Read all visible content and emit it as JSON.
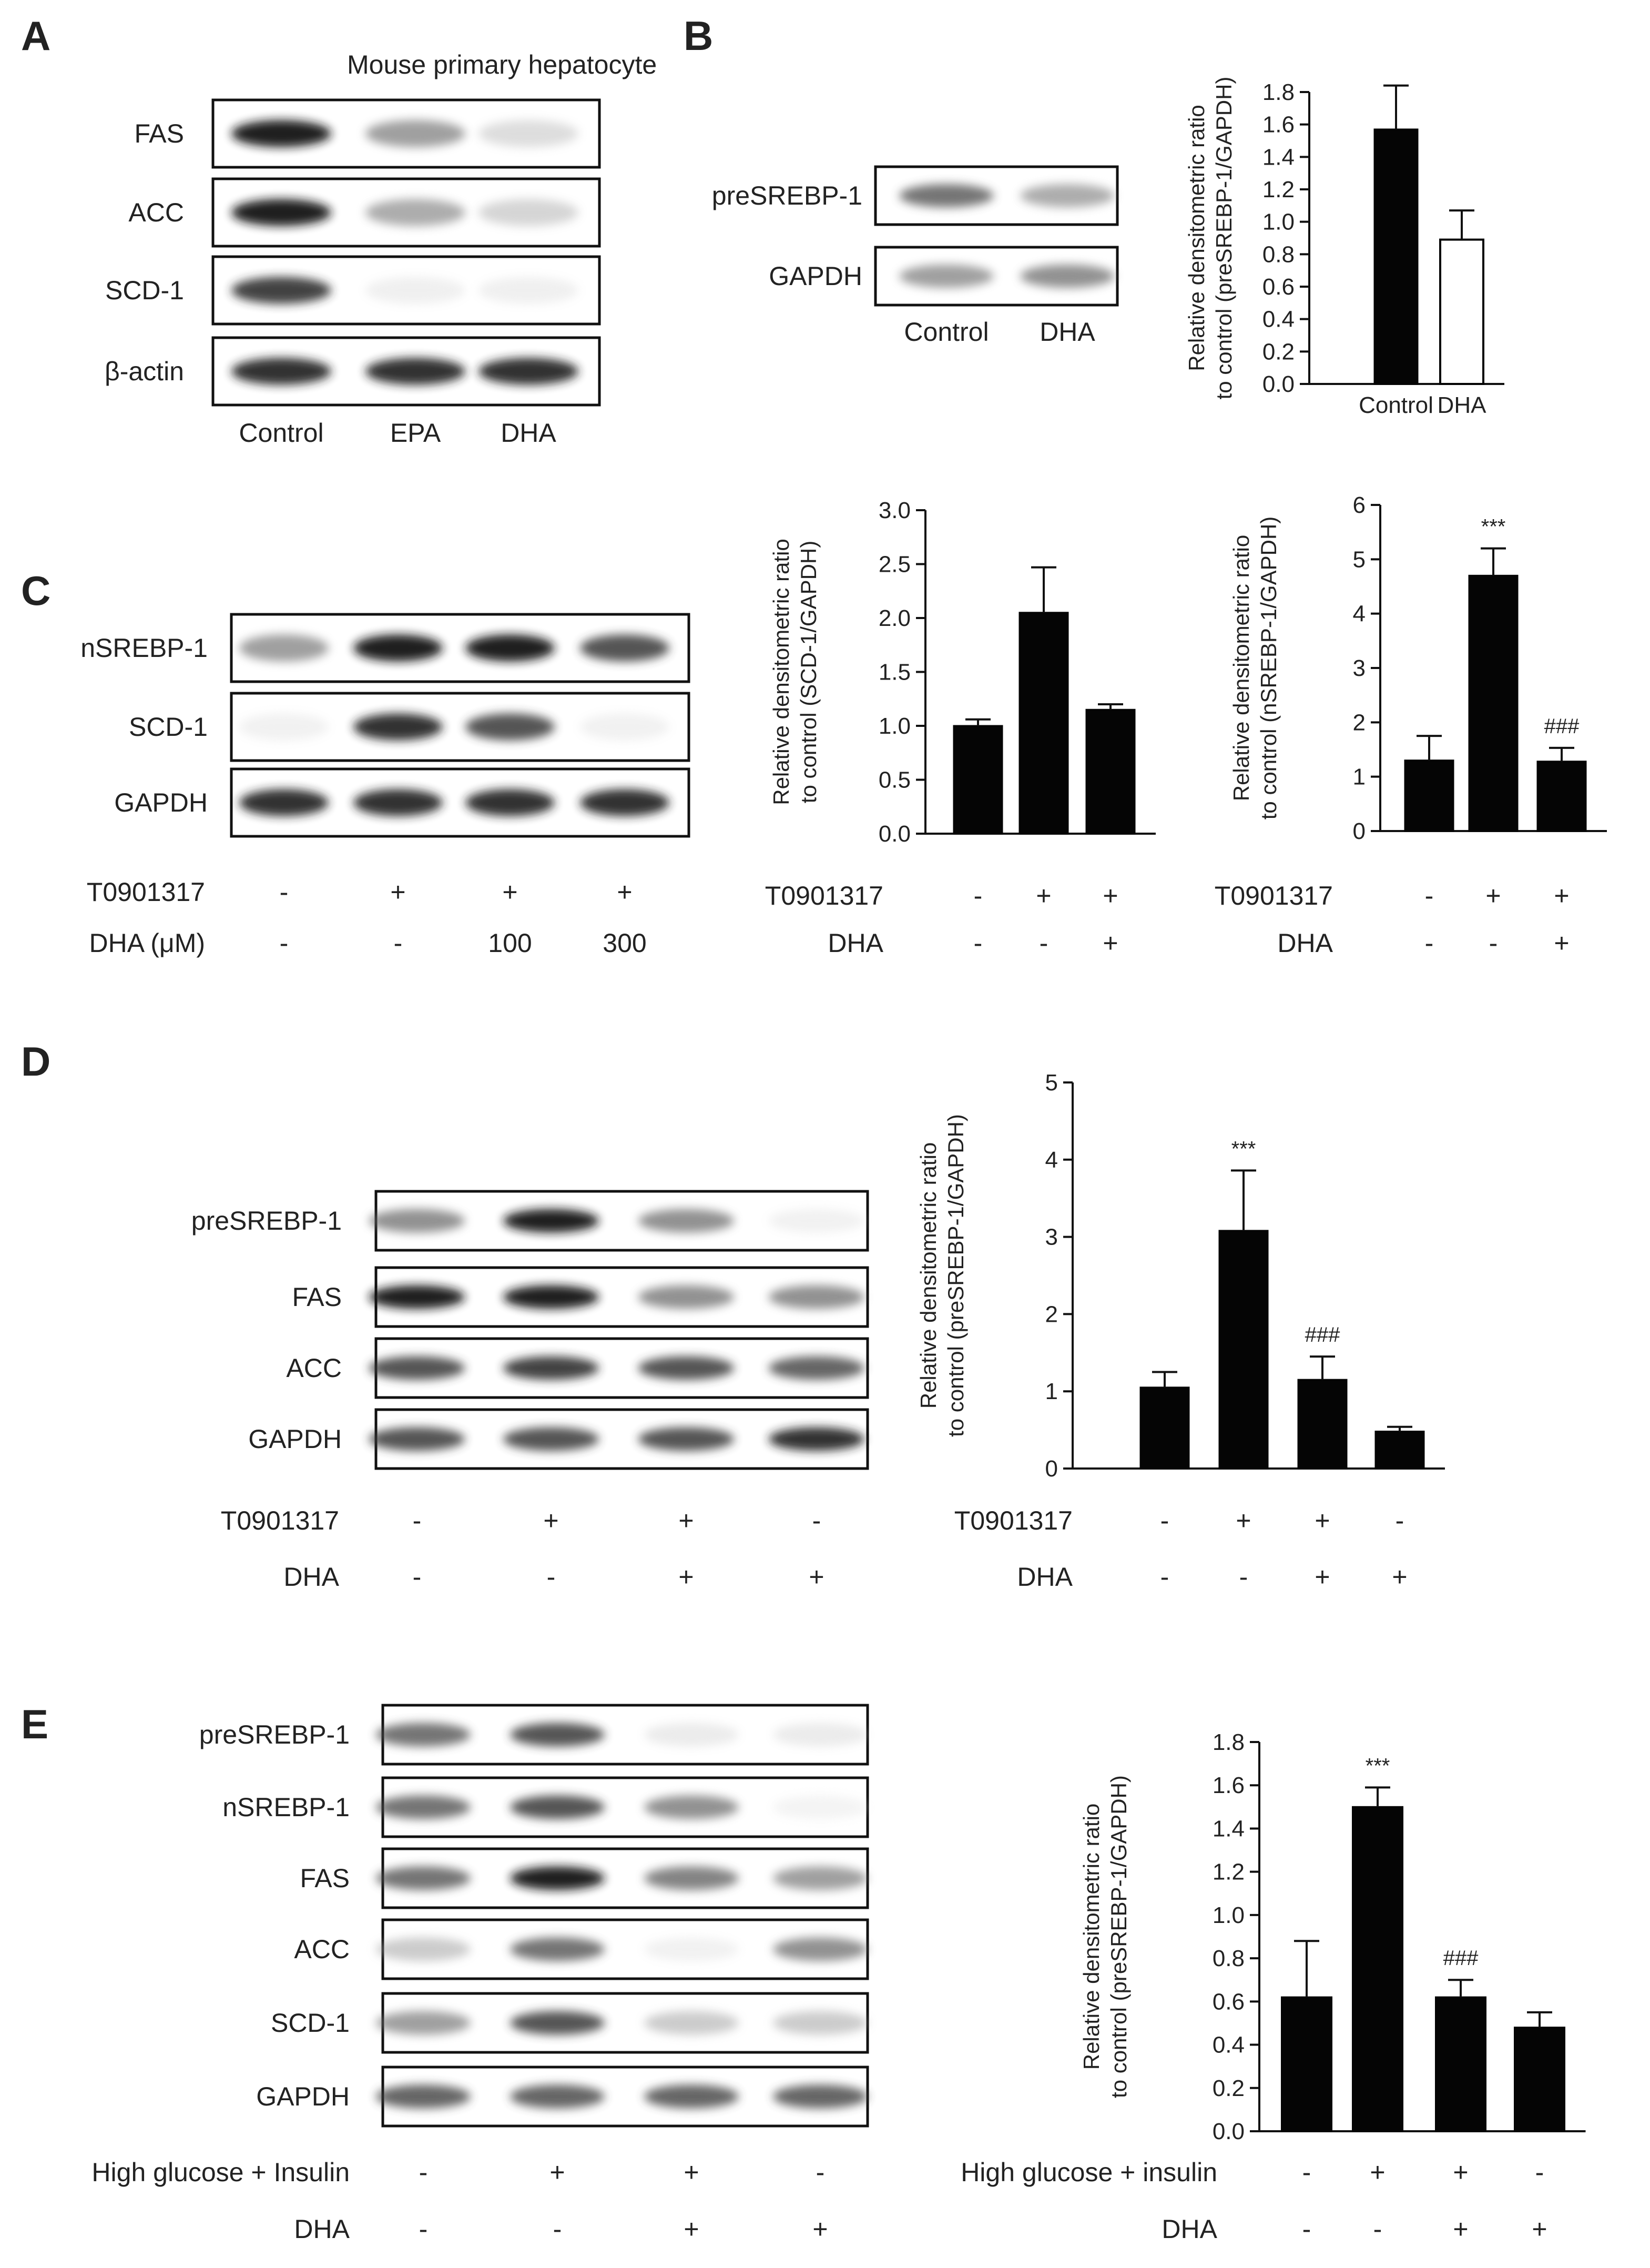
{
  "panels": {
    "A": {
      "letter": "A",
      "title": "Mouse primary hepatocyte",
      "lanes": [
        "Control",
        "EPA",
        "DHA"
      ],
      "rows": [
        {
          "label": "FAS",
          "intensity": [
            0.95,
            0.55,
            0.25
          ]
        },
        {
          "label": "ACC",
          "intensity": [
            0.95,
            0.5,
            0.3
          ]
        },
        {
          "label": "SCD-1",
          "intensity": [
            0.85,
            0.1,
            0.1
          ]
        },
        {
          "label": "β-actin",
          "intensity": [
            0.9,
            0.9,
            0.9
          ]
        }
      ]
    },
    "B": {
      "letter": "B",
      "lanes": [
        "Control",
        "DHA"
      ],
      "rows": [
        {
          "label": "preSREBP-1",
          "intensity": [
            0.7,
            0.5
          ]
        },
        {
          "label": "GAPDH",
          "intensity": [
            0.55,
            0.6
          ]
        }
      ]
    },
    "C": {
      "letter": "C",
      "rows": [
        {
          "label": "nSREBP-1",
          "intensity": [
            0.55,
            0.95,
            0.95,
            0.8
          ]
        },
        {
          "label": "SCD-1",
          "intensity": [
            0.08,
            0.9,
            0.8,
            0.08
          ]
        },
        {
          "label": "GAPDH",
          "intensity": [
            0.9,
            0.9,
            0.9,
            0.9
          ]
        }
      ],
      "treatments": [
        {
          "label": "T0901317",
          "values": [
            "-",
            "+",
            "+",
            "+"
          ]
        },
        {
          "label": "DHA (μM)",
          "values": [
            "-",
            "-",
            "100",
            "300"
          ]
        }
      ]
    },
    "D": {
      "letter": "D",
      "rows": [
        {
          "label": "preSREBP-1",
          "intensity": [
            0.6,
            0.95,
            0.6,
            0.08
          ]
        },
        {
          "label": "FAS",
          "intensity": [
            0.95,
            0.95,
            0.6,
            0.6
          ]
        },
        {
          "label": "ACC",
          "intensity": [
            0.8,
            0.85,
            0.8,
            0.75
          ]
        },
        {
          "label": "GAPDH",
          "intensity": [
            0.8,
            0.8,
            0.8,
            0.9
          ]
        }
      ],
      "treatments": [
        {
          "label": "T0901317",
          "values": [
            "-",
            "+",
            "+",
            "-"
          ]
        },
        {
          "label": "DHA",
          "values": [
            "-",
            "-",
            "+",
            "+"
          ]
        }
      ]
    },
    "E": {
      "letter": "E",
      "rows": [
        {
          "label": "preSREBP-1",
          "intensity": [
            0.7,
            0.8,
            0.15,
            0.15
          ]
        },
        {
          "label": "nSREBP-1",
          "intensity": [
            0.7,
            0.8,
            0.6,
            0.05
          ]
        },
        {
          "label": "FAS",
          "intensity": [
            0.7,
            0.95,
            0.65,
            0.55
          ]
        },
        {
          "label": "ACC",
          "intensity": [
            0.35,
            0.7,
            0.08,
            0.6
          ]
        },
        {
          "label": "SCD-1",
          "intensity": [
            0.55,
            0.8,
            0.35,
            0.35
          ]
        },
        {
          "label": "GAPDH",
          "intensity": [
            0.75,
            0.75,
            0.75,
            0.75
          ]
        }
      ],
      "treatments": [
        {
          "label": "High glucose + Insulin",
          "values": [
            "-",
            "+",
            "+",
            "-"
          ]
        },
        {
          "label": "DHA",
          "values": [
            "-",
            "-",
            "+",
            "+"
          ]
        }
      ]
    }
  },
  "chart_data": [
    {
      "id": "B",
      "type": "bar",
      "categories": [
        "Control",
        "DHA"
      ],
      "values": [
        1.57,
        0.89
      ],
      "errors": [
        0.27,
        0.18
      ],
      "fills": [
        "black",
        "white"
      ],
      "ylabel": "Relative densitometric ratio\nto control (preSREBP-1/GAPDH)",
      "ylim": [
        0,
        1.8
      ],
      "yticks": [
        0.0,
        0.2,
        0.4,
        0.6,
        0.8,
        1.0,
        1.2,
        1.4,
        1.6,
        1.8
      ],
      "annotations": [
        "",
        ""
      ]
    },
    {
      "id": "C1",
      "type": "bar",
      "values": [
        1.0,
        2.05,
        1.15
      ],
      "errors": [
        0.06,
        0.42,
        0.05
      ],
      "ylabel": "Relative densitometric ratio\nto control (SCD-1/GAPDH)",
      "ylim": [
        0,
        3.0
      ],
      "yticks": [
        0.0,
        0.5,
        1.0,
        1.5,
        2.0,
        2.5,
        3.0
      ],
      "annotations": [
        "",
        "",
        ""
      ],
      "treatments": [
        {
          "label": "T0901317",
          "values": [
            "-",
            "+",
            "+"
          ]
        },
        {
          "label": "DHA",
          "values": [
            "-",
            "-",
            "+"
          ]
        }
      ]
    },
    {
      "id": "C2",
      "type": "bar",
      "values": [
        1.3,
        4.7,
        1.28
      ],
      "errors": [
        0.45,
        0.5,
        0.25
      ],
      "ylabel": "Relative densitometric ratio\nto control (nSREBP-1/GAPDH)",
      "ylim": [
        0,
        6
      ],
      "yticks": [
        0,
        1,
        2,
        3,
        4,
        5,
        6
      ],
      "annotations": [
        "",
        "***",
        "###"
      ],
      "treatments": [
        {
          "label": "T0901317",
          "values": [
            "-",
            "+",
            "+"
          ]
        },
        {
          "label": "DHA",
          "values": [
            "-",
            "-",
            "+"
          ]
        }
      ]
    },
    {
      "id": "D",
      "type": "bar",
      "values": [
        1.05,
        3.08,
        1.15,
        0.48
      ],
      "errors": [
        0.2,
        0.78,
        0.3,
        0.06
      ],
      "ylabel": "Relative densitometric ratio\nto control (preSREBP-1/GAPDH)",
      "ylim": [
        0,
        5
      ],
      "yticks": [
        0,
        1,
        2,
        3,
        4,
        5
      ],
      "annotations": [
        "",
        "***",
        "###",
        ""
      ],
      "treatments": [
        {
          "label": "T0901317",
          "values": [
            "-",
            "+",
            "+",
            "-"
          ]
        },
        {
          "label": "DHA",
          "values": [
            "-",
            "-",
            "+",
            "+"
          ]
        }
      ]
    },
    {
      "id": "E",
      "type": "bar",
      "values": [
        0.62,
        1.5,
        0.62,
        0.48
      ],
      "errors": [
        0.26,
        0.09,
        0.08,
        0.07
      ],
      "ylabel": "Relative densitometric ratio\nto control (preSREBP-1/GAPDH)",
      "ylim": [
        0,
        1.8
      ],
      "yticks": [
        0.0,
        0.2,
        0.4,
        0.6,
        0.8,
        1.0,
        1.2,
        1.4,
        1.6,
        1.8
      ],
      "annotations": [
        "",
        "***",
        "###",
        ""
      ],
      "treatments": [
        {
          "label": "High glucose + insulin",
          "values": [
            "-",
            "+",
            "+",
            "-"
          ]
        },
        {
          "label": "DHA",
          "values": [
            "-",
            "-",
            "+",
            "+"
          ]
        }
      ]
    }
  ]
}
